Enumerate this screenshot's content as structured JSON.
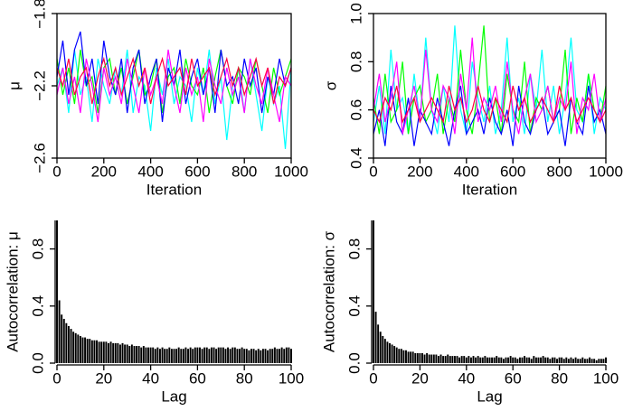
{
  "chart_data": [
    {
      "type": "line",
      "xlabel": "Iteration",
      "ylabel": "μ",
      "frame": true,
      "x": [
        0,
        25,
        50,
        75,
        100,
        125,
        150,
        175,
        200,
        225,
        250,
        275,
        300,
        325,
        350,
        375,
        400,
        425,
        450,
        475,
        500,
        525,
        550,
        575,
        600,
        625,
        650,
        675,
        700,
        725,
        750,
        775,
        800,
        825,
        850,
        875,
        900,
        925,
        950,
        975,
        1000
      ],
      "xlim": [
        0,
        1000
      ],
      "xticks": [
        0,
        200,
        400,
        600,
        800,
        1000
      ],
      "ylim": [
        -2.6,
        -1.8
      ],
      "yticks": [
        {
          "value": -2.6,
          "label": "−2.6"
        },
        {
          "value": -2.2,
          "label": "−2.2"
        },
        {
          "value": -1.8,
          "label": "−1.8"
        }
      ],
      "series": [
        {
          "color": "#00FFFF",
          "values": [
            -2.2,
            -2.1,
            -2.35,
            -2.0,
            -2.25,
            -2.15,
            -2.4,
            -2.05,
            -2.2,
            -2.3,
            -2.1,
            -2.25,
            -2.0,
            -2.35,
            -2.15,
            -2.2,
            -2.45,
            -2.1,
            -2.25,
            -2.05,
            -2.3,
            -2.15,
            -2.2,
            -2.4,
            -2.1,
            -2.25,
            -2.0,
            -2.3,
            -2.15,
            -2.5,
            -2.2,
            -2.1,
            -2.35,
            -2.05,
            -2.25,
            -2.45,
            -2.15,
            -2.3,
            -2.2,
            -2.55,
            -2.1
          ]
        },
        {
          "color": "#00FF00",
          "values": [
            -2.05,
            -2.25,
            -2.1,
            -2.3,
            -2.0,
            -2.2,
            -2.15,
            -2.35,
            -2.1,
            -2.05,
            -2.25,
            -2.1,
            -2.3,
            -2.15,
            -2.0,
            -2.25,
            -2.2,
            -2.05,
            -2.35,
            -2.15,
            -2.1,
            -2.3,
            -2.05,
            -2.2,
            -2.25,
            -2.1,
            -2.35,
            -2.15,
            -2.0,
            -2.2,
            -2.3,
            -2.1,
            -2.15,
            -2.25,
            -2.05,
            -2.2,
            -2.35,
            -2.1,
            -2.25,
            -2.15,
            -2.05
          ]
        },
        {
          "color": "#0000FF",
          "values": [
            -2.15,
            -1.95,
            -2.25,
            -2.0,
            -1.9,
            -2.2,
            -2.05,
            -2.3,
            -1.95,
            -2.15,
            -2.25,
            -2.05,
            -2.35,
            -2.1,
            -2.0,
            -2.3,
            -2.15,
            -2.05,
            -2.4,
            -2.1,
            -2.2,
            -2.0,
            -2.3,
            -2.15,
            -2.05,
            -2.25,
            -2.1,
            -2.35,
            -2.0,
            -2.2,
            -2.15,
            -2.3,
            -2.05,
            -2.2,
            -2.1,
            -2.35,
            -2.15,
            -2.25,
            -2.05,
            -2.2,
            -2.1
          ]
        },
        {
          "color": "#FF00FF",
          "values": [
            -2.25,
            -2.1,
            -2.3,
            -2.15,
            -2.35,
            -2.05,
            -2.2,
            -2.4,
            -2.1,
            -2.25,
            -2.15,
            -2.3,
            -2.05,
            -2.2,
            -2.35,
            -2.1,
            -2.25,
            -2.15,
            -2.3,
            -2.0,
            -2.2,
            -2.35,
            -2.1,
            -2.25,
            -2.15,
            -2.4,
            -2.05,
            -2.2,
            -2.3,
            -2.1,
            -2.25,
            -2.15,
            -2.35,
            -2.05,
            -2.2,
            -2.3,
            -2.1,
            -2.25,
            -2.4,
            -2.15,
            -2.2
          ]
        },
        {
          "color": "#FF0040",
          "values": [
            -2.1,
            -2.2,
            -2.05,
            -2.25,
            -2.15,
            -2.1,
            -2.3,
            -2.15,
            -2.05,
            -2.2,
            -2.1,
            -2.25,
            -2.15,
            -2.05,
            -2.2,
            -2.1,
            -2.3,
            -2.15,
            -2.05,
            -2.2,
            -2.15,
            -2.1,
            -2.25,
            -2.05,
            -2.2,
            -2.15,
            -2.1,
            -2.25,
            -2.15,
            -2.05,
            -2.2,
            -2.1,
            -2.25,
            -2.15,
            -2.05,
            -2.2,
            -2.1,
            -2.3,
            -2.15,
            -2.2,
            -2.1
          ]
        }
      ]
    },
    {
      "type": "line",
      "xlabel": "Iteration",
      "ylabel": "σ",
      "frame": true,
      "x": [
        0,
        25,
        50,
        75,
        100,
        125,
        150,
        175,
        200,
        225,
        250,
        275,
        300,
        325,
        350,
        375,
        400,
        425,
        450,
        475,
        500,
        525,
        550,
        575,
        600,
        625,
        650,
        675,
        700,
        725,
        750,
        775,
        800,
        825,
        850,
        875,
        900,
        925,
        950,
        975,
        1000
      ],
      "xlim": [
        0,
        1000
      ],
      "xticks": [
        0,
        200,
        400,
        600,
        800,
        1000
      ],
      "ylim": [
        0.4,
        1.0
      ],
      "yticks": [
        0.4,
        0.6,
        0.8,
        {
          "value": 1.0,
          "label": "1.0"
        }
      ],
      "series": [
        {
          "color": "#00FFFF",
          "values": [
            0.55,
            0.7,
            0.5,
            0.85,
            0.6,
            0.65,
            0.5,
            0.75,
            0.55,
            0.9,
            0.6,
            0.5,
            0.7,
            0.55,
            0.95,
            0.6,
            0.5,
            0.8,
            0.65,
            0.55,
            0.7,
            0.5,
            0.6,
            0.9,
            0.55,
            0.65,
            0.5,
            0.75,
            0.6,
            0.85,
            0.55,
            0.7,
            0.5,
            0.65,
            0.9,
            0.6,
            0.55,
            0.75,
            0.5,
            0.65,
            0.6
          ]
        },
        {
          "color": "#00FF00",
          "values": [
            0.65,
            0.5,
            0.75,
            0.55,
            0.6,
            0.8,
            0.5,
            0.65,
            0.7,
            0.55,
            0.6,
            0.75,
            0.5,
            0.65,
            0.55,
            0.85,
            0.6,
            0.5,
            0.7,
            0.95,
            0.55,
            0.65,
            0.5,
            0.75,
            0.6,
            0.55,
            0.8,
            0.5,
            0.65,
            0.6,
            0.7,
            0.55,
            0.6,
            0.85,
            0.5,
            0.65,
            0.55,
            0.75,
            0.6,
            0.55,
            0.7
          ]
        },
        {
          "color": "#0000FF",
          "values": [
            0.5,
            0.6,
            0.45,
            0.7,
            0.55,
            0.5,
            0.65,
            0.45,
            0.6,
            0.55,
            0.5,
            0.65,
            0.55,
            0.45,
            0.6,
            0.7,
            0.5,
            0.55,
            0.6,
            0.5,
            0.65,
            0.55,
            0.5,
            0.6,
            0.45,
            0.7,
            0.55,
            0.5,
            0.6,
            0.65,
            0.5,
            0.55,
            0.6,
            0.45,
            0.65,
            0.55,
            0.5,
            0.7,
            0.55,
            0.6,
            0.5
          ]
        },
        {
          "color": "#FF00FF",
          "values": [
            0.6,
            0.75,
            0.55,
            0.65,
            0.8,
            0.5,
            0.6,
            0.7,
            0.55,
            0.85,
            0.6,
            0.55,
            0.7,
            0.65,
            0.5,
            0.75,
            0.6,
            0.9,
            0.55,
            0.65,
            0.6,
            0.7,
            0.55,
            0.8,
            0.6,
            0.5,
            0.65,
            0.75,
            0.55,
            0.6,
            0.7,
            0.55,
            0.65,
            0.6,
            0.8,
            0.5,
            0.65,
            0.6,
            0.75,
            0.55,
            0.65
          ]
        },
        {
          "color": "#FF0040",
          "values": [
            0.6,
            0.55,
            0.65,
            0.6,
            0.7,
            0.55,
            0.6,
            0.65,
            0.55,
            0.6,
            0.65,
            0.6,
            0.55,
            0.7,
            0.6,
            0.65,
            0.55,
            0.6,
            0.7,
            0.6,
            0.55,
            0.65,
            0.6,
            0.55,
            0.7,
            0.6,
            0.65,
            0.55,
            0.6,
            0.65,
            0.6,
            0.55,
            0.7,
            0.6,
            0.65,
            0.55,
            0.6,
            0.65,
            0.6,
            0.55,
            0.6
          ]
        }
      ]
    },
    {
      "type": "bar",
      "xlabel": "Lag",
      "ylabel": "Autocorrelation: μ",
      "frame": false,
      "color": "#000000",
      "x": [
        0,
        1,
        2,
        3,
        4,
        5,
        6,
        7,
        8,
        9,
        10,
        11,
        12,
        13,
        14,
        15,
        16,
        17,
        18,
        19,
        20,
        21,
        22,
        23,
        24,
        25,
        26,
        27,
        28,
        29,
        30,
        31,
        32,
        33,
        34,
        35,
        36,
        37,
        38,
        39,
        40,
        41,
        42,
        43,
        44,
        45,
        46,
        47,
        48,
        49,
        50,
        51,
        52,
        53,
        54,
        55,
        56,
        57,
        58,
        59,
        60,
        61,
        62,
        63,
        64,
        65,
        66,
        67,
        68,
        69,
        70,
        71,
        72,
        73,
        74,
        75,
        76,
        77,
        78,
        79,
        80,
        81,
        82,
        83,
        84,
        85,
        86,
        87,
        88,
        89,
        90,
        91,
        92,
        93,
        94,
        95,
        96,
        97,
        98,
        99,
        100
      ],
      "xlim": [
        0,
        100
      ],
      "xticks": [
        0,
        20,
        40,
        60,
        80,
        100
      ],
      "ylim": [
        0,
        1
      ],
      "yticks": [
        {
          "value": 0,
          "label": "0.0"
        },
        0.4,
        0.8
      ],
      "values": [
        1,
        0.44,
        0.34,
        0.31,
        0.28,
        0.26,
        0.24,
        0.22,
        0.21,
        0.2,
        0.19,
        0.18,
        0.18,
        0.17,
        0.17,
        0.16,
        0.16,
        0.16,
        0.15,
        0.15,
        0.15,
        0.15,
        0.14,
        0.15,
        0.14,
        0.14,
        0.14,
        0.13,
        0.14,
        0.13,
        0.13,
        0.12,
        0.13,
        0.12,
        0.12,
        0.12,
        0.11,
        0.12,
        0.11,
        0.11,
        0.11,
        0.11,
        0.1,
        0.11,
        0.1,
        0.11,
        0.1,
        0.1,
        0.11,
        0.1,
        0.1,
        0.1,
        0.11,
        0.1,
        0.1,
        0.11,
        0.1,
        0.11,
        0.1,
        0.11,
        0.11,
        0.11,
        0.1,
        0.11,
        0.11,
        0.1,
        0.11,
        0.11,
        0.1,
        0.11,
        0.11,
        0.11,
        0.1,
        0.11,
        0.1,
        0.11,
        0.11,
        0.1,
        0.1,
        0.11,
        0.1,
        0.1,
        0.09,
        0.1,
        0.1,
        0.09,
        0.1,
        0.09,
        0.1,
        0.1,
        0.09,
        0.1,
        0.1,
        0.11,
        0.1,
        0.1,
        0.11,
        0.1,
        0.11,
        0.11,
        0.1
      ]
    },
    {
      "type": "bar",
      "xlabel": "Lag",
      "ylabel": "Autocorrelation: σ",
      "frame": false,
      "color": "#000000",
      "x": [
        0,
        1,
        2,
        3,
        4,
        5,
        6,
        7,
        8,
        9,
        10,
        11,
        12,
        13,
        14,
        15,
        16,
        17,
        18,
        19,
        20,
        21,
        22,
        23,
        24,
        25,
        26,
        27,
        28,
        29,
        30,
        31,
        32,
        33,
        34,
        35,
        36,
        37,
        38,
        39,
        40,
        41,
        42,
        43,
        44,
        45,
        46,
        47,
        48,
        49,
        50,
        51,
        52,
        53,
        54,
        55,
        56,
        57,
        58,
        59,
        60,
        61,
        62,
        63,
        64,
        65,
        66,
        67,
        68,
        69,
        70,
        71,
        72,
        73,
        74,
        75,
        76,
        77,
        78,
        79,
        80,
        81,
        82,
        83,
        84,
        85,
        86,
        87,
        88,
        89,
        90,
        91,
        92,
        93,
        94,
        95,
        96,
        97,
        98,
        99,
        100
      ],
      "xlim": [
        0,
        100
      ],
      "xticks": [
        0,
        20,
        40,
        60,
        80,
        100
      ],
      "ylim": [
        0,
        1
      ],
      "yticks": [
        {
          "value": 0,
          "label": "0.0"
        },
        0.4,
        0.8
      ],
      "values": [
        1,
        0.36,
        0.27,
        0.22,
        0.19,
        0.17,
        0.15,
        0.14,
        0.13,
        0.12,
        0.11,
        0.1,
        0.1,
        0.09,
        0.09,
        0.08,
        0.08,
        0.08,
        0.07,
        0.07,
        0.07,
        0.07,
        0.06,
        0.07,
        0.06,
        0.06,
        0.06,
        0.06,
        0.05,
        0.06,
        0.05,
        0.05,
        0.06,
        0.05,
        0.05,
        0.05,
        0.05,
        0.04,
        0.05,
        0.05,
        0.04,
        0.05,
        0.04,
        0.05,
        0.04,
        0.05,
        0.04,
        0.04,
        0.05,
        0.04,
        0.04,
        0.04,
        0.04,
        0.05,
        0.04,
        0.04,
        0.03,
        0.04,
        0.04,
        0.05,
        0.04,
        0.04,
        0.03,
        0.04,
        0.04,
        0.05,
        0.04,
        0.04,
        0.03,
        0.05,
        0.04,
        0.04,
        0.04,
        0.05,
        0.04,
        0.04,
        0.03,
        0.04,
        0.04,
        0.03,
        0.04,
        0.04,
        0.03,
        0.04,
        0.03,
        0.04,
        0.03,
        0.04,
        0.03,
        0.03,
        0.04,
        0.03,
        0.03,
        0.04,
        0.03,
        0.03,
        0.02,
        0.03,
        0.03,
        0.03,
        0.04
      ]
    }
  ]
}
